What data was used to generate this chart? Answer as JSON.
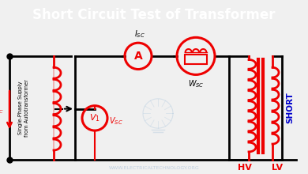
{
  "title": "Short Circuit Test of Transformer",
  "title_fontsize": 12,
  "title_bg": "#1a1a1a",
  "title_color": "#ffffff",
  "bg_color": "#f0f0f0",
  "circuit_color": "#000000",
  "red_color": "#ee0000",
  "blue_color": "#0000cc",
  "watermark": "WWW.ELECTRICALTECHNOLOGY.ORG",
  "watermark_color": "#c0d0e0",
  "hv_label": "HV",
  "lv_label": "LV",
  "short_label": "SHORT",
  "supply_label": "Single-Phase Supply\nfrom Autotransformer"
}
